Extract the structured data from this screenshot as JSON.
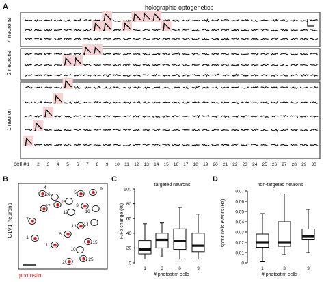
{
  "panel_a": {
    "label": "A",
    "title": "holographic optogenetics",
    "group_labels": [
      "4 neurons",
      "2 neurons",
      "1 neuron"
    ],
    "cell_prefix": "cell #",
    "cells": [
      "1",
      "2",
      "3",
      "4",
      "5",
      "6",
      "7",
      "8",
      "9",
      "10",
      "11",
      "12",
      "13",
      "14",
      "15",
      "16",
      "17",
      "18",
      "19",
      "20",
      "21",
      "22",
      "23",
      "24",
      "25",
      "26",
      "27",
      "28",
      "29",
      "30"
    ],
    "highlight_color": "#f6d3d3"
  },
  "panel_b": {
    "label": "B",
    "side_label": "C1V1 neurons",
    "caption": "photostim",
    "cell_numbers": [
      "4",
      "9",
      "26",
      "5",
      "28",
      "27",
      "3",
      "8",
      "12",
      "16",
      "7",
      "13",
      "14",
      "1",
      "6",
      "15",
      "11",
      "10",
      "2",
      "25"
    ]
  },
  "chart_data": [
    {
      "type": "box",
      "panel": "C",
      "title": "targeted neurons",
      "xlabel": "# photostim cells",
      "ylabel": "F/Fo change (%)",
      "categories": [
        "1",
        "3",
        "6",
        "9"
      ],
      "y_ticks": [
        "0",
        "20",
        "40",
        "60",
        "80",
        "100"
      ],
      "ylim": [
        0,
        100
      ],
      "boxes": [
        {
          "min": 5,
          "q1": 12,
          "median": 18,
          "q3": 30,
          "max": 53
        },
        {
          "min": 8,
          "q1": 20,
          "median": 31,
          "q3": 40,
          "max": 54
        },
        {
          "min": 5,
          "q1": 18,
          "median": 30,
          "q3": 46,
          "max": 75
        },
        {
          "min": 5,
          "q1": 15,
          "median": 23,
          "q3": 40,
          "max": 66
        }
      ]
    },
    {
      "type": "box",
      "panel": "D",
      "title": "non-targeted neurons",
      "xlabel": "# photostim cells",
      "ylabel": "spont cells events (Hz)",
      "categories": [
        "1",
        "3",
        "9"
      ],
      "y_ticks": [
        "0",
        "0.01",
        "0.02",
        "0.03",
        "0.04",
        "0.05",
        "0.06",
        "0.07"
      ],
      "ylim": [
        0,
        0.07
      ],
      "boxes": [
        {
          "min": 0.001,
          "q1": 0.015,
          "median": 0.02,
          "q3": 0.028,
          "max": 0.048
        },
        {
          "min": 0.008,
          "q1": 0.016,
          "median": 0.02,
          "q3": 0.04,
          "max": 0.067
        },
        {
          "min": 0.01,
          "q1": 0.023,
          "median": 0.026,
          "q3": 0.033,
          "max": 0.052
        }
      ]
    }
  ]
}
